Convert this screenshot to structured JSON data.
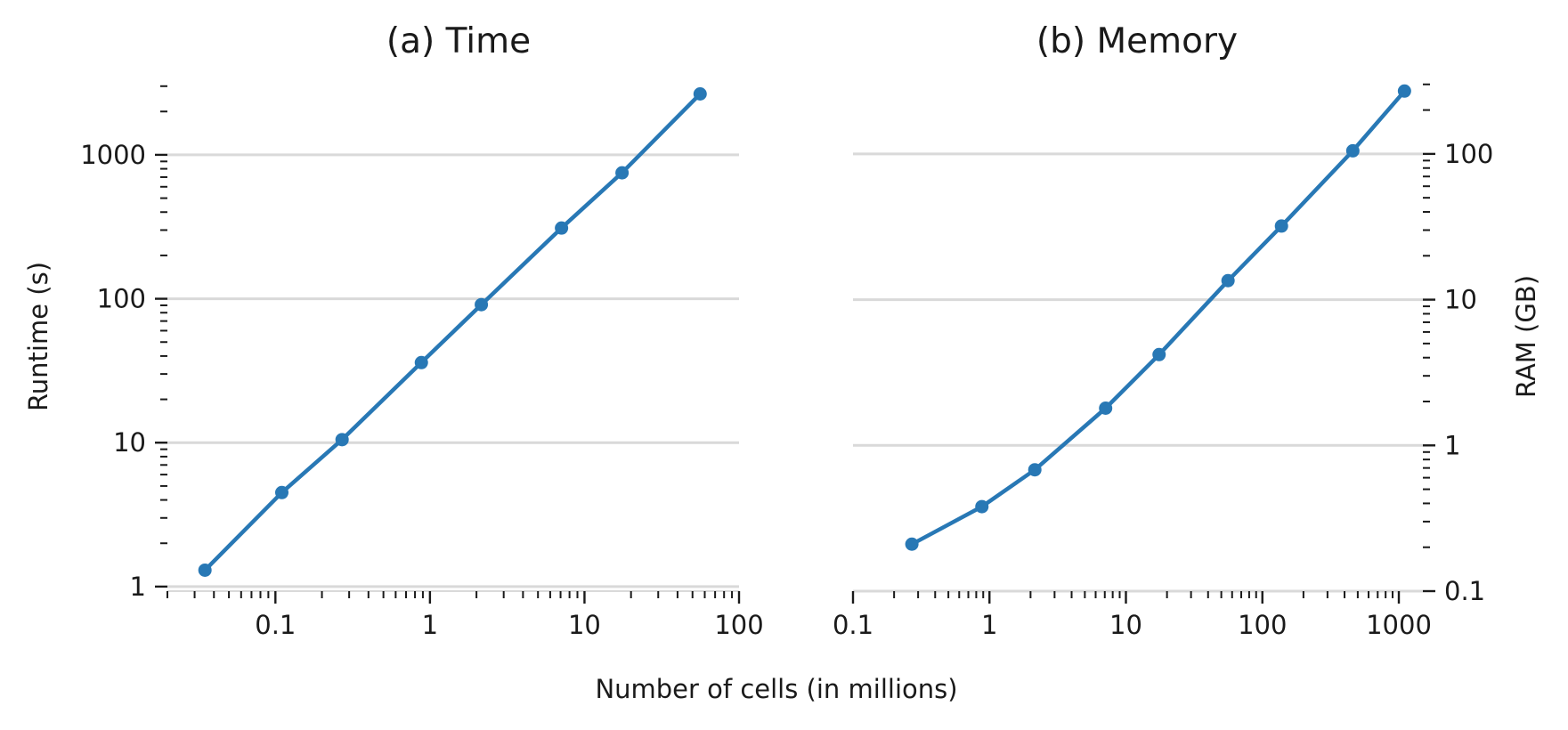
{
  "figure": {
    "shared_xlabel": "Number of cells (in millions)",
    "line_color": "#2878b5",
    "grid_color": "#d9d9d9"
  },
  "chart_data": [
    {
      "type": "line",
      "title": "(a) Time",
      "xlabel": "Number of cells (in millions)",
      "ylabel": "Runtime (s)",
      "xscale": "log",
      "yscale": "log",
      "xlim": [
        0.02,
        100
      ],
      "ylim": [
        0.93,
        3400
      ],
      "x_ticks": [
        0.1,
        1,
        10,
        100
      ],
      "x_tick_labels": [
        "0.1",
        "1",
        "10",
        "100"
      ],
      "y_ticks": [
        1,
        10,
        100,
        1000
      ],
      "y_tick_labels": [
        "1",
        "10",
        "100",
        "1000"
      ],
      "y_axis_side": "left",
      "grid": "horizontal major",
      "series": [
        {
          "x": [
            0.035,
            0.11,
            0.27,
            0.88,
            2.15,
            7.1,
            17.5,
            56
          ],
          "y": [
            1.3,
            4.5,
            10.5,
            36,
            91,
            310,
            750,
            2650
          ]
        }
      ]
    },
    {
      "type": "line",
      "title": "(b) Memory",
      "xlabel": "Number of cells (in millions)",
      "ylabel": "RAM (GB)",
      "xscale": "log",
      "yscale": "log",
      "xlim": [
        0.1,
        1500
      ],
      "ylim": [
        0.1,
        330
      ],
      "x_ticks": [
        0.1,
        1,
        10,
        100,
        1000
      ],
      "x_tick_labels": [
        "0.1",
        "1",
        "10",
        "100",
        "1000"
      ],
      "y_ticks": [
        0.1,
        1,
        10,
        100
      ],
      "y_tick_labels": [
        "0.1",
        "1",
        "10",
        "100"
      ],
      "y_axis_side": "right",
      "grid": "horizontal major",
      "series": [
        {
          "x": [
            0.27,
            0.88,
            2.15,
            7.1,
            17.5,
            56,
            138,
            460,
            1100
          ],
          "y": [
            0.21,
            0.38,
            0.68,
            1.8,
            4.2,
            13.5,
            32,
            105,
            270
          ]
        }
      ]
    }
  ]
}
